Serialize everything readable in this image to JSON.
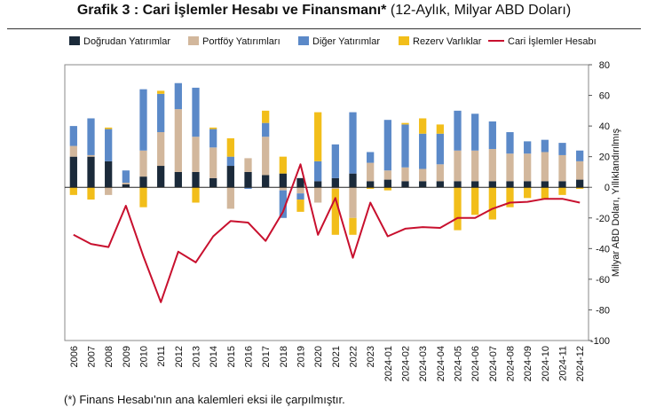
{
  "title": {
    "bold": "Grafik 3 : Cari İşlemler Hesabı ve Finansmanı*",
    "normal": "(12-Aylık, Milyar ABD Doları)"
  },
  "footnote": "(*) Finans Hesabı'nın ana kalemleri eksi ile çarpılmıştır.",
  "chart_data": {
    "type": "bar",
    "stacked": true,
    "categories": [
      "2006",
      "2007",
      "2008",
      "2009",
      "2010",
      "2011",
      "2012",
      "2013",
      "2014",
      "2015",
      "2016",
      "2017",
      "2018",
      "2019",
      "2020",
      "2021",
      "2022",
      "2023",
      "2024-01",
      "2024-02",
      "2024-03",
      "2024-04",
      "2024-05",
      "2024-06",
      "2024-07",
      "2024-08",
      "2024-09",
      "2024-10",
      "2024-11",
      "2024-12"
    ],
    "ylabel": "Milyar ABD Doları, Yıllıklandırılmış",
    "ylim": [
      -100,
      80
    ],
    "yticks": [
      -100,
      -80,
      -60,
      -40,
      -20,
      0,
      20,
      40,
      60,
      80
    ],
    "y_axis_side": "right",
    "legend_position": "top",
    "series": [
      {
        "name": "Doğrudan Yatırımlar",
        "type": "bar",
        "color": "#1b2a3a",
        "values": [
          20,
          20,
          17,
          2,
          7,
          14,
          10,
          10,
          6,
          14,
          10,
          8,
          9,
          6,
          4,
          6,
          9,
          4,
          5,
          4,
          4,
          4,
          4,
          4,
          4,
          4,
          4,
          4,
          4,
          5
        ]
      },
      {
        "name": "Portföy Yatırımları",
        "type": "bar",
        "color": "#d2b79c",
        "values": [
          7,
          1,
          -5,
          1,
          17,
          22,
          41,
          23,
          20,
          -14,
          9,
          25,
          -2,
          -4,
          -10,
          -1,
          -20,
          12,
          6,
          9,
          8,
          11,
          20,
          20,
          21,
          18,
          18,
          19,
          17,
          12
        ]
      },
      {
        "name": "Diğer Yatırımlar",
        "type": "bar",
        "color": "#5b89c8",
        "values": [
          13,
          24,
          21,
          8,
          40,
          25,
          17,
          32,
          12,
          6,
          -1,
          9,
          -18,
          -4,
          13,
          22,
          40,
          7,
          33,
          28,
          23,
          20,
          26,
          24,
          18,
          14,
          8,
          8,
          8,
          7
        ]
      },
      {
        "name": "Rezerv Varlıklar",
        "type": "bar",
        "color": "#f2be1a",
        "values": [
          -5,
          -8,
          1,
          0,
          -13,
          2,
          0,
          -10,
          1,
          12,
          0,
          8,
          11,
          -8,
          32,
          -30,
          -11,
          -1,
          -2,
          1,
          10,
          6,
          -28,
          -18,
          -21,
          -13,
          -7,
          -8,
          -5,
          -1
        ]
      },
      {
        "name": "Cari İşlemler Hesabı",
        "type": "line",
        "color": "#c8102e",
        "values": [
          -31,
          -37,
          -39,
          -12,
          -45,
          -75,
          -42,
          -49,
          -32,
          -22,
          -23,
          -35,
          -16,
          15,
          -31,
          -7,
          -46,
          -10,
          -32,
          -27,
          -26,
          -26.5,
          -20,
          -20,
          -14,
          -10,
          -9.5,
          -7.5,
          -7.5,
          -10
        ]
      }
    ]
  }
}
